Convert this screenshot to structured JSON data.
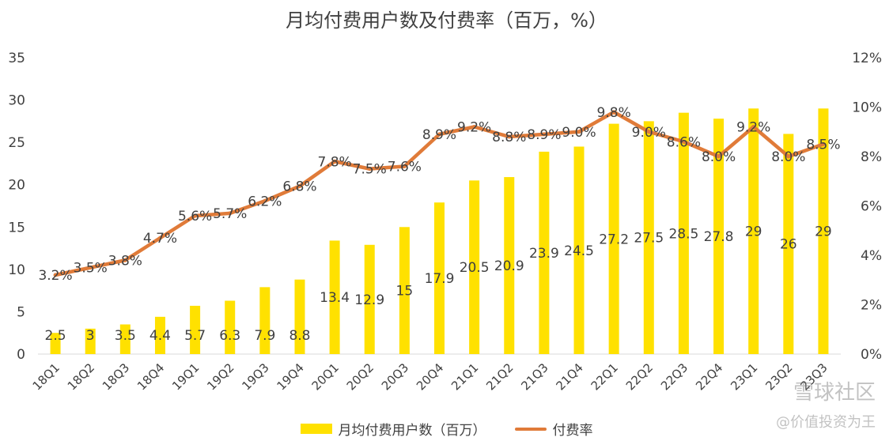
{
  "chart_data": {
    "type": "bar+line",
    "title": "月均付费用户数及付费率（百万，%）",
    "categories": [
      "18Q1",
      "18Q2",
      "18Q3",
      "18Q4",
      "19Q1",
      "19Q2",
      "19Q3",
      "19Q4",
      "20Q1",
      "20Q2",
      "20Q3",
      "20Q4",
      "21Q1",
      "21Q2",
      "21Q3",
      "21Q4",
      "22Q1",
      "22Q2",
      "22Q3",
      "22Q4",
      "23Q1",
      "23Q2",
      "23Q3"
    ],
    "series": [
      {
        "name": "月均付费用户数（百万）",
        "type": "bar",
        "axis": "left",
        "values": [
          2.5,
          3,
          3.5,
          4.4,
          5.7,
          6.3,
          7.9,
          8.8,
          13.4,
          12.9,
          15,
          17.9,
          20.5,
          20.9,
          23.9,
          24.5,
          27.2,
          27.5,
          28.5,
          27.8,
          29,
          26,
          29
        ],
        "labels": [
          "2.5",
          "3",
          "3.5",
          "4.4",
          "5.7",
          "6.3",
          "7.9",
          "8.8",
          "13.4",
          "12.9",
          "15",
          "17.9",
          "20.5",
          "20.9",
          "23.9",
          "24.5",
          "27.2",
          "27.5",
          "28.5",
          "27.8",
          "29",
          "26",
          "29"
        ]
      },
      {
        "name": "付费率",
        "type": "line",
        "axis": "right",
        "values": [
          3.2,
          3.5,
          3.8,
          4.7,
          5.6,
          5.7,
          6.2,
          6.8,
          7.8,
          7.5,
          7.6,
          8.9,
          9.2,
          8.8,
          8.9,
          9.0,
          9.8,
          9.0,
          8.6,
          8.0,
          9.2,
          8.0,
          8.5
        ],
        "labels": [
          "3.2%",
          "3.5%",
          "3.8%",
          "4.7%",
          "5.6%",
          "5.7%",
          "6.2%",
          "6.8%",
          "7.8%",
          "7.5%",
          "7.6%",
          "8.9%",
          "9.2%",
          "8.8%",
          "8.9%",
          "9.0%",
          "9.8%",
          "9.0%",
          "8.6%",
          "8.0%",
          "9.2%",
          "8.0%",
          "8.5%"
        ]
      }
    ],
    "left_axis": {
      "min": 0,
      "max": 35,
      "ticks": [
        "0",
        "5",
        "10",
        "15",
        "20",
        "25",
        "30",
        "35"
      ]
    },
    "right_axis": {
      "min": 0,
      "max": 12,
      "ticks": [
        "0%",
        "2%",
        "4%",
        "6%",
        "8%",
        "10%",
        "12%"
      ]
    },
    "grid": false,
    "legend_position": "bottom"
  },
  "colors": {
    "bar": "#FFE100",
    "line": "#E07B39",
    "text": "#404040"
  },
  "watermark": {
    "line1": "雪球社区",
    "line2": "@价值投资为王"
  }
}
